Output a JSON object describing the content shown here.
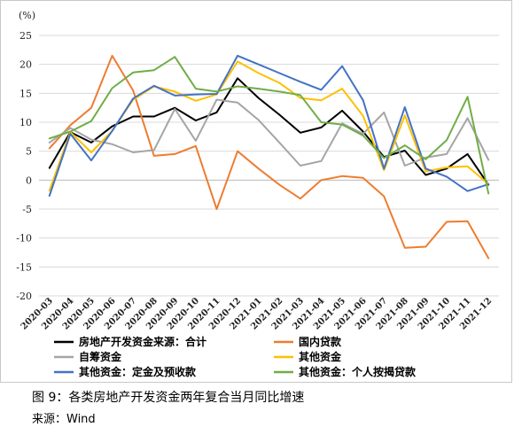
{
  "caption": "图 9：各类房地产开发资金两年复合当月同比增速",
  "source": "来源：Wind",
  "chart_data": {
    "type": "line",
    "unit": "(%)",
    "ylim": [
      -20,
      25
    ],
    "yticks": [
      -20,
      -15,
      -10,
      -5,
      0,
      5,
      10,
      15,
      20,
      25
    ],
    "grid": true,
    "legend_position": "bottom",
    "categories": [
      "2020-03",
      "2020-04",
      "2020-05",
      "2020-06",
      "2020-07",
      "2020-08",
      "2020-09",
      "2020-10",
      "2020-11",
      "2020-12",
      "2021-01",
      "2021-02",
      "2021-03",
      "2021-04",
      "2021-05",
      "2021-06",
      "2021-07",
      "2021-08",
      "2021-09",
      "2021-10",
      "2021-11",
      "2021-12"
    ],
    "series": [
      {
        "name": "房地产开发资金来源：合计",
        "color": "#000000",
        "values": [
          2.1,
          8.3,
          6.5,
          9.3,
          11.0,
          11.0,
          12.5,
          10.3,
          11.7,
          17.6,
          14.2,
          11.3,
          8.2,
          9.1,
          12.0,
          8.4,
          4.0,
          5.1,
          0.9,
          2.0,
          4.5,
          -0.8
        ]
      },
      {
        "name": "国内贷款",
        "color": "#ED7D31",
        "values": [
          5.5,
          9.5,
          12.5,
          21.5,
          15.5,
          4.2,
          4.5,
          5.9,
          -5.0,
          5.0,
          2.0,
          -0.8,
          -3.2,
          0.0,
          0.7,
          0.4,
          -2.8,
          -11.7,
          -11.5,
          -7.2,
          -7.1,
          -13.5
        ]
      },
      {
        "name": "自筹资金",
        "color": "#A5A5A5",
        "values": [
          6.5,
          9.0,
          7.0,
          6.2,
          4.8,
          5.2,
          12.3,
          6.8,
          13.9,
          13.4,
          10.4,
          6.5,
          2.5,
          3.3,
          9.8,
          8.0,
          11.7,
          2.5,
          3.9,
          4.5,
          10.7,
          3.5
        ]
      },
      {
        "name": "其他资金",
        "color": "#FFC000",
        "values": [
          -1.8,
          8.3,
          4.8,
          8.5,
          13.9,
          16.2,
          15.3,
          13.7,
          14.8,
          20.5,
          18.5,
          16.8,
          14.2,
          13.8,
          15.8,
          11.1,
          1.7,
          11.2,
          1.5,
          2.2,
          2.4,
          -0.7
        ]
      },
      {
        "name": "其他资金：定金及预收款",
        "color": "#4472C4",
        "values": [
          -2.7,
          8.0,
          3.4,
          8.5,
          14.1,
          16.3,
          14.6,
          14.8,
          14.9,
          21.5,
          20.0,
          18.5,
          17.0,
          15.6,
          19.7,
          13.8,
          2.0,
          12.6,
          2.0,
          0.6,
          -1.9,
          -0.7
        ]
      },
      {
        "name": "其他资金：个人按揭贷款",
        "color": "#70AD47",
        "values": [
          7.2,
          8.4,
          10.2,
          15.9,
          18.6,
          19.0,
          21.3,
          15.8,
          15.3,
          16.2,
          15.8,
          15.3,
          14.7,
          10.0,
          9.6,
          7.7,
          3.8,
          6.0,
          3.6,
          6.9,
          14.4,
          -2.3
        ]
      }
    ]
  }
}
